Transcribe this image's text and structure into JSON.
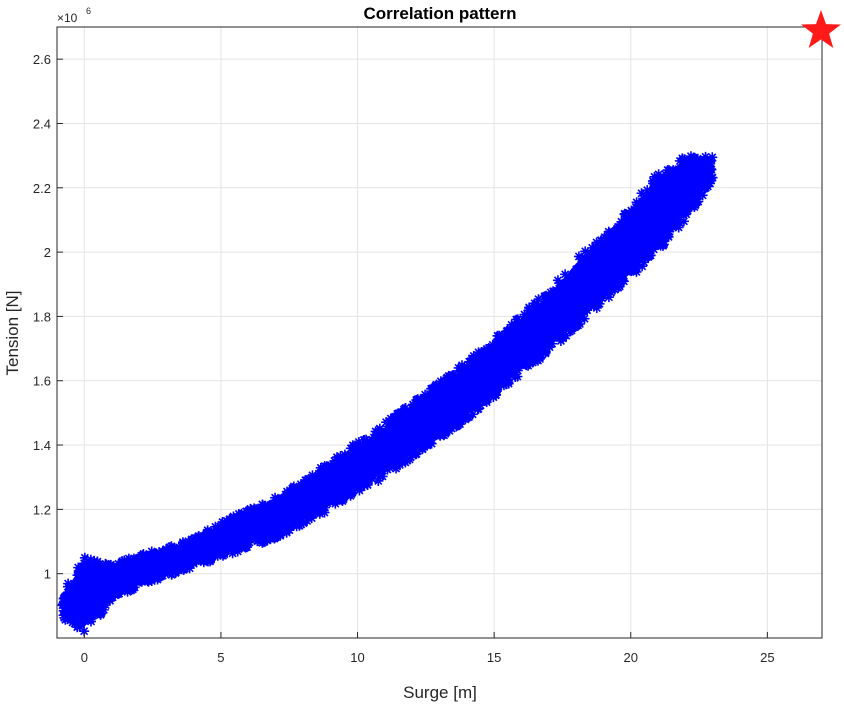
{
  "chart_data": {
    "type": "scatter",
    "title": "Correlation pattern",
    "xlabel": "Surge [m]",
    "ylabel": "Tension [N]",
    "y_exponent_label": "×10",
    "y_exponent_power": "6",
    "y_scale": 1000000,
    "xlim": [
      -1,
      27
    ],
    "ylim": [
      800000,
      2700000
    ],
    "xticks": [
      0,
      5,
      10,
      15,
      20,
      25
    ],
    "yticks": [
      1000000,
      1200000,
      1400000,
      1600000,
      1800000,
      2000000,
      2200000,
      2400000,
      2600000
    ],
    "ytick_labels": [
      "1",
      "1.2",
      "1.4",
      "1.6",
      "1.8",
      "2",
      "2.2",
      "2.4",
      "2.6"
    ],
    "grid": true,
    "marker": "asterisk",
    "series_color": "#0000ff",
    "band": [
      {
        "x": -0.8,
        "low": 860000,
        "high": 950000
      },
      {
        "x": 0.0,
        "low": 820000,
        "high": 1050000
      },
      {
        "x": 0.5,
        "low": 860000,
        "high": 1040000
      },
      {
        "x": 1.0,
        "low": 920000,
        "high": 1030000
      },
      {
        "x": 2.0,
        "low": 960000,
        "high": 1060000
      },
      {
        "x": 3.0,
        "low": 990000,
        "high": 1080000
      },
      {
        "x": 4.0,
        "low": 1020000,
        "high": 1110000
      },
      {
        "x": 5.0,
        "low": 1050000,
        "high": 1160000
      },
      {
        "x": 6.0,
        "low": 1080000,
        "high": 1200000
      },
      {
        "x": 7.0,
        "low": 1110000,
        "high": 1240000
      },
      {
        "x": 8.0,
        "low": 1150000,
        "high": 1290000
      },
      {
        "x": 9.0,
        "low": 1200000,
        "high": 1350000
      },
      {
        "x": 10.0,
        "low": 1250000,
        "high": 1410000
      },
      {
        "x": 11.0,
        "low": 1300000,
        "high": 1470000
      },
      {
        "x": 12.0,
        "low": 1360000,
        "high": 1530000
      },
      {
        "x": 13.0,
        "low": 1420000,
        "high": 1600000
      },
      {
        "x": 14.0,
        "low": 1480000,
        "high": 1660000
      },
      {
        "x": 15.0,
        "low": 1550000,
        "high": 1730000
      },
      {
        "x": 16.0,
        "low": 1620000,
        "high": 1810000
      },
      {
        "x": 17.0,
        "low": 1690000,
        "high": 1880000
      },
      {
        "x": 18.0,
        "low": 1760000,
        "high": 1980000
      },
      {
        "x": 19.0,
        "low": 1840000,
        "high": 2050000
      },
      {
        "x": 20.0,
        "low": 1920000,
        "high": 2140000
      },
      {
        "x": 21.0,
        "low": 2000000,
        "high": 2250000
      },
      {
        "x": 22.0,
        "low": 2100000,
        "high": 2300000
      },
      {
        "x": 23.0,
        "low": 2220000,
        "high": 2300000
      }
    ],
    "star_color": "#ff1a1a"
  }
}
